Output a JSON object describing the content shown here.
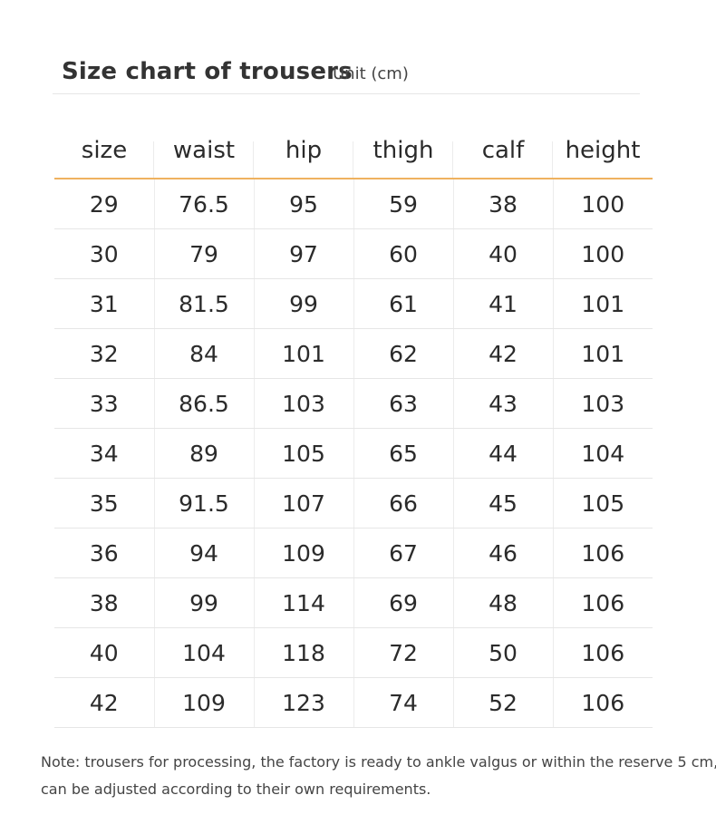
{
  "title": "Size chart of trousers",
  "unit": "Unit (cm)",
  "table": {
    "headers": [
      "size",
      "waist",
      "hip",
      "thigh",
      "calf",
      "height"
    ],
    "rows": [
      [
        "29",
        "76.5",
        "95",
        "59",
        "38",
        "100"
      ],
      [
        "30",
        "79",
        "97",
        "60",
        "40",
        "100"
      ],
      [
        "31",
        "81.5",
        "99",
        "61",
        "41",
        "101"
      ],
      [
        "32",
        "84",
        "101",
        "62",
        "42",
        "101"
      ],
      [
        "33",
        "86.5",
        "103",
        "63",
        "43",
        "103"
      ],
      [
        "34",
        "89",
        "105",
        "65",
        "44",
        "104"
      ],
      [
        "35",
        "91.5",
        "107",
        "66",
        "45",
        "105"
      ],
      [
        "36",
        "94",
        "109",
        "67",
        "46",
        "106"
      ],
      [
        "38",
        "99",
        "114",
        "69",
        "48",
        "106"
      ],
      [
        "40",
        "104",
        "118",
        "72",
        "50",
        "106"
      ],
      [
        "42",
        "109",
        "123",
        "74",
        "52",
        "106"
      ]
    ]
  },
  "note": {
    "line1": "Note: trousers for processing, the factory is ready to ankle valgus or within the reserve 5 cm,",
    "line2": "can be adjusted according to their own requirements."
  },
  "colors": {
    "header_rule": "#efb25f",
    "row_rule": "#e6e6e6",
    "text": "#2b2b2b"
  }
}
